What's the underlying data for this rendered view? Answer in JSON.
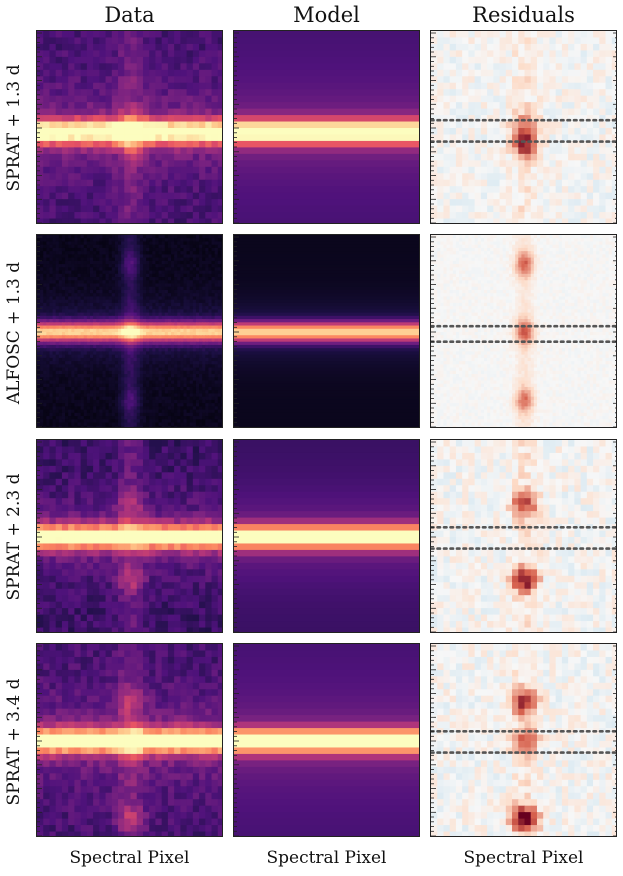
{
  "chart_data": {
    "type": "heatmap",
    "columns": [
      "Data",
      "Model",
      "Residuals"
    ],
    "rows": [
      {
        "label": "SPRAT  + 1.3 d",
        "instrument": "SPRAT",
        "epoch": "+ 1.3 d",
        "trace_row": 0.52,
        "trace_width": 0.045,
        "line_col": 0.5,
        "line_width": 0.05,
        "blobs": [
          [
            0.48,
            0.33
          ],
          [
            0.58,
            0.78
          ]
        ],
        "cutout_rows": [
          0.46,
          0.57
        ],
        "pixels": 30,
        "noise": 0.28,
        "bg_level": 0.28
      },
      {
        "label": "ALFOSC  + 1.3 d",
        "instrument": "ALFOSC",
        "epoch": "+ 1.3 d",
        "trace_row": 0.5,
        "trace_width": 0.035,
        "line_col": 0.5,
        "line_width": 0.035,
        "blobs": [
          [
            0.15,
            0.5
          ],
          [
            0.5,
            0.55
          ],
          [
            0.85,
            0.45
          ]
        ],
        "cutout_rows": [
          0.47,
          0.55
        ],
        "pixels": 60,
        "noise": 0.1,
        "bg_level": 0.06
      },
      {
        "label": "SPRAT  + 2.3 d",
        "instrument": "SPRAT",
        "epoch": "+ 2.3 d",
        "trace_row": 0.5,
        "trace_width": 0.045,
        "line_col": 0.5,
        "line_width": 0.05,
        "blobs": [
          [
            0.33,
            0.6
          ],
          [
            0.72,
            0.85
          ]
        ],
        "cutout_rows": [
          0.45,
          0.56
        ],
        "pixels": 30,
        "noise": 0.3,
        "bg_level": 0.24
      },
      {
        "label": "SPRAT  + 3.4 d",
        "instrument": "SPRAT",
        "epoch": "+ 3.4 d",
        "trace_row": 0.5,
        "trace_width": 0.045,
        "line_col": 0.5,
        "line_width": 0.05,
        "blobs": [
          [
            0.3,
            0.72
          ],
          [
            0.5,
            0.55
          ],
          [
            0.9,
            1.0
          ]
        ],
        "cutout_rows": [
          0.45,
          0.56
        ],
        "pixels": 30,
        "noise": 0.3,
        "bg_level": 0.28
      }
    ],
    "xlabel": "Spectral Pixel",
    "colormaps": {
      "data_model": "magma",
      "residuals": "RdBu_r"
    },
    "cutout_line_style": "dotted",
    "cutout_line_color": "#555555"
  }
}
